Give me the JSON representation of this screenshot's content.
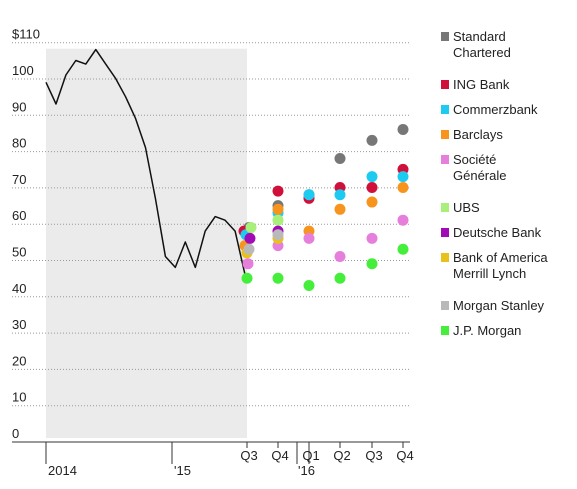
{
  "chart_data": {
    "type": "line",
    "y_axis": {
      "ylim": [
        0,
        110
      ],
      "ticks": [
        0,
        10,
        20,
        30,
        40,
        50,
        60,
        70,
        80,
        90,
        100,
        110
      ],
      "tick_labels": [
        "0",
        "10",
        "20",
        "30",
        "40",
        "50",
        "60",
        "70",
        "80",
        "90",
        "100",
        "$110"
      ]
    },
    "x_axis_labels": {
      "history": [
        "2014",
        "'15"
      ],
      "forecast_quarters": [
        "Q3",
        "Q4",
        "Q1",
        "Q2",
        "Q3",
        "Q4"
      ],
      "forecast_years": [
        "'16"
      ]
    },
    "history_series": {
      "x": [
        "2014-01",
        "2014-02",
        "2014-03",
        "2014-04",
        "2014-05",
        "2014-06",
        "2014-07",
        "2014-08",
        "2014-09",
        "2014-10",
        "2014-11",
        "2014-12",
        "2015-01",
        "2015-02",
        "2015-03",
        "2015-04",
        "2015-05",
        "2015-06",
        "2015-07",
        "2015-08",
        "2015-09"
      ],
      "y": [
        98,
        92,
        100,
        104,
        103,
        107,
        103,
        99,
        94,
        88,
        80,
        66,
        50,
        47,
        54,
        47,
        57,
        61,
        60,
        57,
        45
      ]
    },
    "forecast_series": [
      {
        "name": "Standard Chartered",
        "color": "#777777",
        "values": [
          58,
          64,
          67,
          77,
          82,
          85
        ]
      },
      {
        "name": "ING Bank",
        "color": "#d0103a",
        "values": [
          57,
          68,
          66,
          69,
          69,
          74
        ]
      },
      {
        "name": "Commerzbank",
        "color": "#1ecbf0",
        "values": [
          56,
          62,
          67,
          67,
          72,
          72
        ]
      },
      {
        "name": "Barclays",
        "color": "#f7941d",
        "values": [
          53,
          63,
          57,
          63,
          65,
          69
        ]
      },
      {
        "name": "Société Générale",
        "color": "#e67fdc",
        "values": [
          48,
          53,
          55,
          50,
          55,
          60
        ]
      },
      {
        "name": "UBS",
        "color": "#a8f07a",
        "values": [
          58,
          60,
          null,
          null,
          null,
          null
        ]
      },
      {
        "name": "Deutsche Bank",
        "color": "#a10bb5",
        "values": [
          55,
          57,
          null,
          null,
          null,
          null
        ]
      },
      {
        "name": "Bank of America Merrill Lynch",
        "color": "#e8c11b",
        "values": [
          51,
          55,
          null,
          null,
          null,
          null
        ]
      },
      {
        "name": "Morgan Stanley",
        "color": "#b9b9b9",
        "values": [
          52,
          56,
          null,
          null,
          null,
          null
        ]
      },
      {
        "name": "J.P. Morgan",
        "color": "#45ee3a",
        "values": [
          44,
          44,
          42,
          44,
          48,
          52
        ]
      }
    ],
    "legend": [
      {
        "lines": [
          "Standard",
          "Chartered"
        ],
        "color": "#777777"
      },
      {
        "lines": [
          "ING Bank"
        ],
        "color": "#d0103a"
      },
      {
        "lines": [
          "Commerzbank"
        ],
        "color": "#1ecbf0"
      },
      {
        "lines": [
          "Barclays"
        ],
        "color": "#f7941d"
      },
      {
        "lines": [
          "Société",
          "Générale"
        ],
        "color": "#e67fdc"
      },
      {
        "lines": [
          "UBS"
        ],
        "color": "#a8f07a"
      },
      {
        "lines": [
          "Deutsche Bank"
        ],
        "color": "#a10bb5"
      },
      {
        "lines": [
          "Bank of America",
          "Merrill Lynch"
        ],
        "color": "#e8c11b"
      },
      {
        "lines": [
          "Morgan Stanley"
        ],
        "color": "#b9b9b9"
      },
      {
        "lines": [
          "J.P. Morgan"
        ],
        "color": "#45ee3a"
      }
    ],
    "legend_placement": "right",
    "grid": "dotted horizontal",
    "colors": {
      "history_line": "#111111",
      "history_shade": "#ebebeb",
      "grid": "#999999",
      "axis": "#333333"
    }
  }
}
